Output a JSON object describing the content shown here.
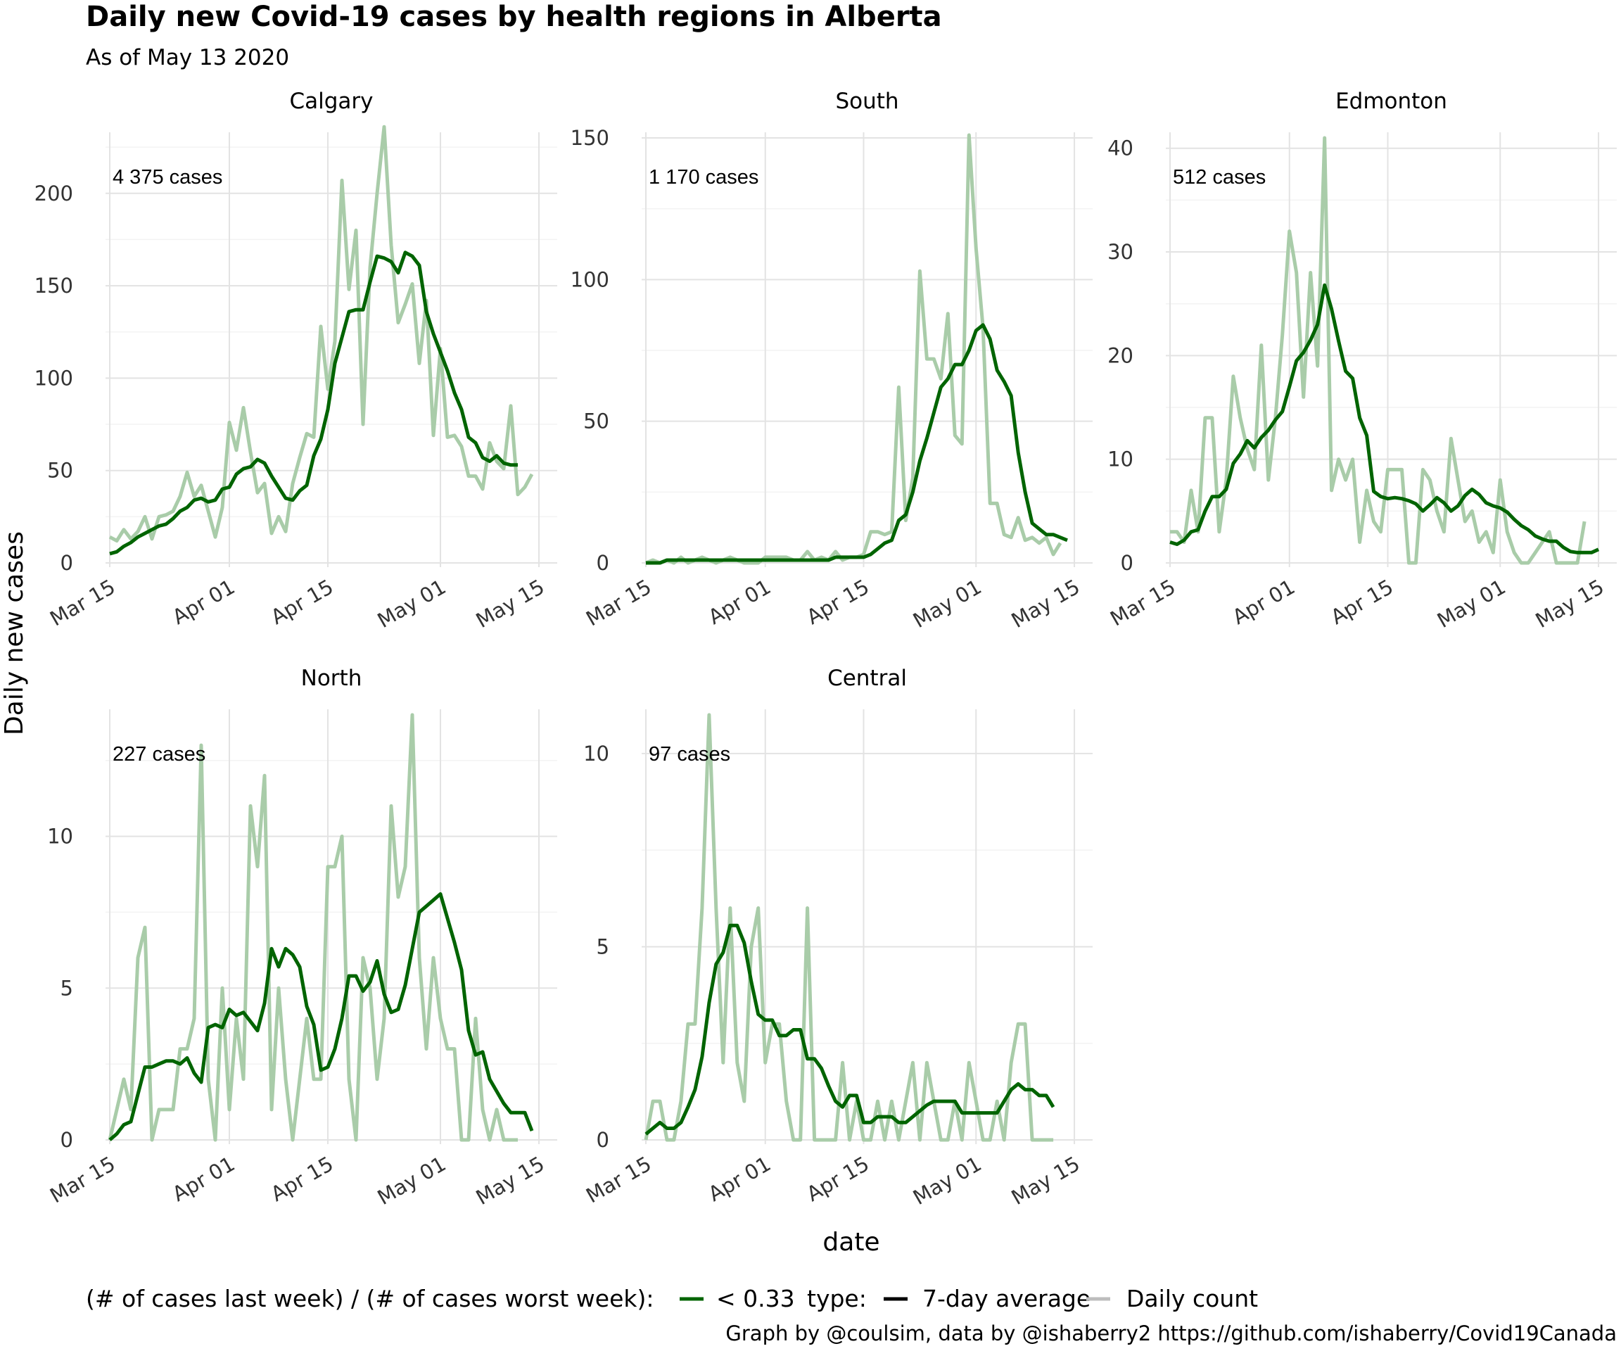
{
  "chart_data": {
    "type": "line",
    "title": "Daily new Covid-19 cases by health regions in Alberta",
    "subtitle": "As of May 13 2020",
    "xlabel": "date",
    "ylabel": "Daily new cases",
    "x_tick_labels": [
      "Mar 15",
      "Apr 01",
      "Apr 15",
      "May 01",
      "May 15"
    ],
    "x_start_date": "2020-03-15",
    "grid": true,
    "legend": {
      "position": "bottom",
      "color_title": "(# of cases last week) / (# of cases worst week):",
      "color_entries": [
        {
          "label": "< 0.33",
          "color": "#006400"
        }
      ],
      "type_title": "type:",
      "type_entries": [
        {
          "label": "7-day average",
          "color": "#000000"
        },
        {
          "label": "Daily count",
          "color": "#bdbdbd"
        }
      ]
    },
    "colors": {
      "average": "#006400",
      "daily": "#a9cca9"
    },
    "caption": "Graph by @coulsim, data by @ishaberry2 https://github.com/ishaberry/Covid19Canada",
    "panels": [
      {
        "name": "Calgary",
        "annotation": "4 375 cases",
        "ylim": [
          0,
          230
        ],
        "yticks": [
          0,
          50,
          100,
          150,
          200
        ],
        "daily": [
          14,
          12,
          18,
          13,
          17,
          25,
          13,
          25,
          26,
          28,
          36,
          49,
          36,
          42,
          28,
          14,
          30,
          76,
          61,
          84,
          60,
          38,
          43,
          16,
          25,
          17,
          43,
          57,
          70,
          68,
          128,
          94,
          120,
          207,
          148,
          180,
          75,
          160,
          200,
          236,
          172,
          130,
          140,
          151,
          108,
          142,
          69,
          116,
          68,
          69,
          63,
          47,
          47,
          40,
          65,
          55,
          51,
          85,
          37,
          41,
          48
        ],
        "average": [
          5,
          6,
          9,
          11,
          14,
          16,
          18,
          20,
          21,
          24,
          28,
          30,
          34,
          35,
          33,
          34,
          40,
          41,
          48,
          51,
          52,
          56,
          54,
          47,
          41,
          35,
          34,
          39,
          42,
          58,
          67,
          83,
          108,
          122,
          136,
          137,
          137,
          152,
          166,
          165,
          163,
          157,
          168,
          166,
          161,
          136,
          124,
          114,
          104,
          92,
          83,
          68,
          65,
          57,
          55,
          58,
          54,
          53,
          53
        ]
      },
      {
        "name": "South",
        "annotation": "1 170 cases",
        "ylim": [
          0,
          150
        ],
        "yticks": [
          0,
          50,
          100,
          150
        ],
        "daily": [
          0,
          1,
          0,
          1,
          0,
          2,
          0,
          1,
          2,
          1,
          0,
          1,
          2,
          1,
          0,
          0,
          0,
          2,
          2,
          2,
          2,
          1,
          1,
          4,
          1,
          2,
          1,
          4,
          1,
          2,
          2,
          3,
          11,
          11,
          10,
          11,
          62,
          15,
          30,
          103,
          72,
          72,
          65,
          88,
          45,
          42,
          151,
          111,
          83,
          21,
          21,
          10,
          9,
          16,
          8,
          9,
          7,
          9,
          3,
          7
        ],
        "average": [
          0,
          0,
          0,
          1,
          1,
          1,
          1,
          1,
          1,
          1,
          1,
          1,
          1,
          1,
          1,
          1,
          1,
          1,
          1,
          1,
          1,
          1,
          1,
          1,
          1,
          1,
          1,
          2,
          2,
          2,
          2,
          2,
          3,
          5,
          7,
          8,
          15,
          17,
          25,
          36,
          44,
          53,
          62,
          65,
          70,
          70,
          75,
          82,
          84,
          79,
          68,
          64,
          59,
          39,
          25,
          14,
          12,
          10,
          10,
          9,
          8
        ]
      },
      {
        "name": "Edmonton",
        "annotation": "512 cases",
        "ylim": [
          0,
          41
        ],
        "yticks": [
          0,
          10,
          20,
          30,
          40
        ],
        "daily": [
          3,
          3,
          2,
          7,
          3,
          14,
          14,
          3,
          8,
          18,
          14,
          11,
          9,
          21,
          8,
          14,
          22,
          32,
          28,
          16,
          28,
          19,
          41,
          7,
          10,
          8,
          10,
          2,
          7,
          4,
          3,
          9,
          9,
          9,
          0,
          0,
          9,
          8,
          5,
          3,
          12,
          8,
          4,
          5,
          2,
          3,
          1,
          8,
          3,
          1,
          0,
          0,
          1,
          2,
          3,
          0,
          0,
          0,
          0,
          4
        ],
        "average": [
          2,
          1.8,
          2.2,
          3,
          3.2,
          5,
          6.4,
          6.4,
          7.1,
          9.6,
          10.5,
          11.8,
          11.1,
          12.1,
          12.8,
          13.8,
          14.6,
          17,
          19.5,
          20.3,
          21.5,
          23,
          26.8,
          24.5,
          21.4,
          18.5,
          17.8,
          14,
          12.3,
          6.9,
          6.4,
          6.2,
          6.3,
          6.2,
          6,
          5.7,
          5,
          5.6,
          6.3,
          5.8,
          5,
          5.5,
          6.5,
          7.1,
          6.6,
          5.8,
          5.5,
          5.3,
          4.9,
          4.2,
          3.6,
          3.2,
          2.6,
          2.3,
          2.1,
          2.1,
          1.5,
          1.1,
          1.0,
          1.0,
          1.0,
          1.3
        ]
      },
      {
        "name": "North",
        "annotation": "227 cases",
        "ylim": [
          0,
          14
        ],
        "yticks": [
          0,
          5,
          10
        ],
        "daily": [
          0,
          1,
          2,
          1,
          6,
          7,
          0,
          1,
          1,
          1,
          3,
          3,
          4,
          13,
          2,
          0,
          5,
          1,
          4,
          2,
          11,
          9,
          12,
          1,
          5,
          2,
          0,
          2,
          4,
          2,
          2,
          9,
          9,
          10,
          2,
          0,
          6,
          5,
          2,
          4,
          11,
          8,
          9,
          14,
          6,
          3,
          6,
          4,
          3,
          3,
          0,
          0,
          4,
          1,
          0,
          1,
          0,
          0,
          0
        ],
        "average": [
          0,
          0.2,
          0.5,
          0.6,
          1.5,
          2.4,
          2.4,
          2.5,
          2.6,
          2.6,
          2.5,
          2.7,
          2.2,
          1.9,
          3.7,
          3.8,
          3.7,
          4.3,
          4.1,
          4.2,
          3.9,
          3.6,
          4.5,
          6.3,
          5.7,
          6.3,
          6.1,
          5.7,
          4.4,
          3.8,
          2.3,
          2.4,
          3.0,
          4.0,
          5.4,
          5.4,
          4.9,
          5.2,
          5.9,
          4.8,
          4.2,
          4.3,
          5.1,
          6.3,
          7.5,
          7.7,
          7.9,
          8.1,
          7.3,
          6.5,
          5.6,
          3.6,
          2.8,
          2.9,
          2.0,
          1.6,
          1.2,
          0.9,
          0.9,
          0.9,
          0.3
        ]
      },
      {
        "name": "Central",
        "annotation": "97 cases",
        "ylim": [
          0,
          11
        ],
        "yticks": [
          0,
          5,
          10
        ],
        "daily": [
          0,
          1,
          1,
          0,
          0,
          1,
          3,
          3,
          6,
          11,
          6,
          2,
          6,
          2,
          1,
          5,
          6,
          2,
          3,
          3,
          1,
          0,
          0,
          6,
          0,
          0,
          0,
          0,
          2,
          0,
          1,
          0,
          0,
          1,
          0,
          1,
          0,
          1,
          2,
          0,
          2,
          1,
          0,
          0,
          1,
          0,
          2,
          1,
          0,
          0,
          1,
          0,
          2,
          3,
          3,
          0,
          0,
          0,
          0
        ],
        "average": [
          0.15,
          0.3,
          0.45,
          0.3,
          0.3,
          0.45,
          0.85,
          1.3,
          2.15,
          3.55,
          4.55,
          4.85,
          5.55,
          5.55,
          5.1,
          4.1,
          3.25,
          3.1,
          3.1,
          2.7,
          2.7,
          2.85,
          2.85,
          2.1,
          2.1,
          1.85,
          1.4,
          1.0,
          0.85,
          1.15,
          1.15,
          0.45,
          0.45,
          0.6,
          0.6,
          0.6,
          0.45,
          0.45,
          0.6,
          0.75,
          0.9,
          1.0,
          1.0,
          1.0,
          1.0,
          0.7,
          0.7,
          0.7,
          0.7,
          0.7,
          0.7,
          1.0,
          1.3,
          1.45,
          1.3,
          1.3,
          1.15,
          1.15,
          0.85
        ]
      }
    ]
  }
}
